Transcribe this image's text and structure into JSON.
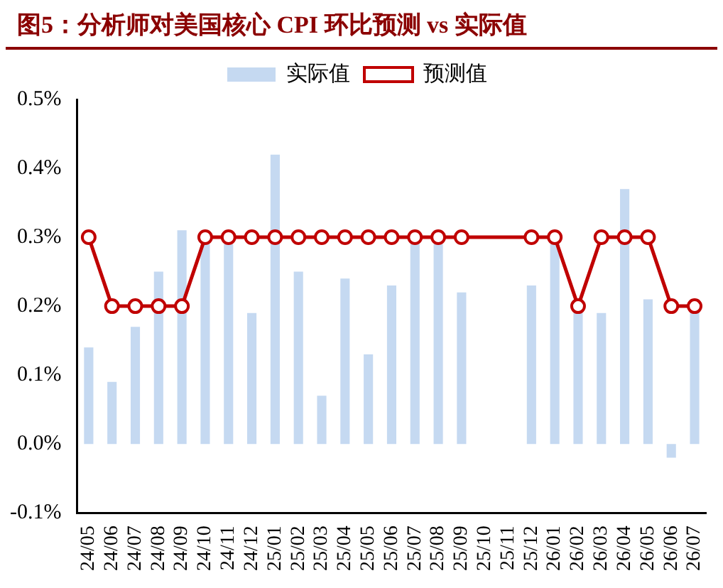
{
  "chart_data": {
    "type": "bar",
    "title": "图5：分析师对美国核心 CPI 环比预测 vs 实际值",
    "categories": [
      "24/05",
      "24/06",
      "24/07",
      "24/08",
      "24/09",
      "24/10",
      "24/11",
      "24/12",
      "25/01",
      "25/02",
      "25/03",
      "25/04",
      "25/05",
      "25/06",
      "25/07",
      "25/08",
      "25/09",
      "25/10",
      "25/11",
      "25/12",
      "26/01",
      "26/02",
      "26/03",
      "26/04",
      "26/05",
      "26/06",
      "26/07"
    ],
    "series": [
      {
        "name": "实际值",
        "color": "#c5d9f1",
        "values": [
          0.14,
          0.09,
          0.17,
          0.25,
          0.31,
          0.29,
          0.29,
          0.19,
          0.42,
          0.25,
          0.07,
          0.24,
          0.13,
          0.23,
          0.29,
          0.29,
          0.22,
          null,
          null,
          0.23,
          0.29,
          0.19,
          0.19,
          0.37,
          0.21,
          -0.02,
          0.21
        ]
      },
      {
        "name": "预测值",
        "type": "line",
        "color": "#c00000",
        "values": [
          0.3,
          0.2,
          0.2,
          0.2,
          0.2,
          0.3,
          0.3,
          0.3,
          0.3,
          0.3,
          0.3,
          0.3,
          0.3,
          0.3,
          0.3,
          0.3,
          0.3,
          null,
          null,
          0.3,
          0.3,
          0.2,
          0.3,
          0.3,
          0.3,
          0.2,
          0.2
        ]
      }
    ],
    "ylim": [
      -0.1,
      0.5
    ],
    "yticks": [
      {
        "value": -0.1,
        "label": "-0.1%"
      },
      {
        "value": 0,
        "label": "0.0%"
      },
      {
        "value": 0.1,
        "label": "0.1%"
      },
      {
        "value": 0.2,
        "label": "0.2%"
      },
      {
        "value": 0.3,
        "label": "0.3%"
      },
      {
        "value": 0.4,
        "label": "0.4%"
      },
      {
        "value": 0.5,
        "label": "0.5%"
      }
    ],
    "grid": false,
    "legend": "top",
    "marker": "circle"
  }
}
